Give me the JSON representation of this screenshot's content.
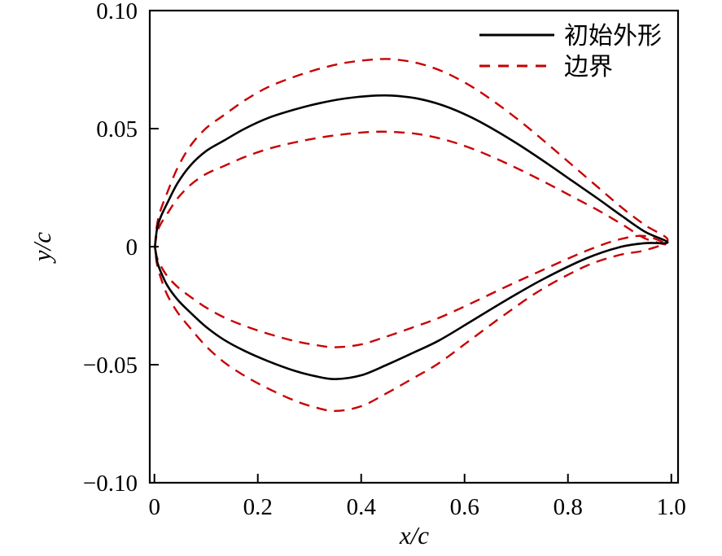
{
  "figure": {
    "background": "#ffffff",
    "axes": {
      "xlabel": "x/c",
      "ylabel": "y/c"
    },
    "legend": {
      "position": "upper right",
      "items": [
        {
          "label": "初始外形",
          "style": "solid",
          "color": "#000000"
        },
        {
          "label": "边界",
          "style": "dashed",
          "color": "#c80000"
        }
      ]
    }
  },
  "chart_data": {
    "type": "line",
    "title": "",
    "xlabel": "x/c",
    "ylabel": "y/c",
    "xlim": [
      -0.009,
      1.013
    ],
    "ylim": [
      -0.1,
      0.1
    ],
    "grid": false,
    "legend_position": "upper right",
    "x_ticks": [
      {
        "v": 0.0,
        "label": "0"
      },
      {
        "v": 0.2,
        "label": "0.2"
      },
      {
        "v": 0.4,
        "label": "0.4"
      },
      {
        "v": 0.6,
        "label": "0.6"
      },
      {
        "v": 0.8,
        "label": "0.8"
      },
      {
        "v": 1.0,
        "label": "1.0"
      }
    ],
    "y_ticks": [
      {
        "v": 0.1,
        "label": "0.10"
      },
      {
        "v": 0.05,
        "label": "0.05"
      },
      {
        "v": 0.0,
        "label": "0"
      },
      {
        "v": -0.05,
        "label": "−0.05"
      },
      {
        "v": -0.1,
        "label": "−0.10"
      }
    ],
    "series": [
      {
        "name": "初始外形",
        "line": "solid",
        "color": "#000000",
        "upper": [
          [
            0.001,
            0.0
          ],
          [
            0.005,
            0.0075
          ],
          [
            0.012,
            0.0125
          ],
          [
            0.025,
            0.0185
          ],
          [
            0.045,
            0.027
          ],
          [
            0.07,
            0.0345
          ],
          [
            0.1,
            0.0405
          ],
          [
            0.135,
            0.045
          ],
          [
            0.175,
            0.05
          ],
          [
            0.22,
            0.0545
          ],
          [
            0.27,
            0.058
          ],
          [
            0.32,
            0.0608
          ],
          [
            0.37,
            0.0628
          ],
          [
            0.42,
            0.0639
          ],
          [
            0.46,
            0.064
          ],
          [
            0.51,
            0.0627
          ],
          [
            0.56,
            0.0597
          ],
          [
            0.61,
            0.0551
          ],
          [
            0.66,
            0.0492
          ],
          [
            0.71,
            0.0425
          ],
          [
            0.76,
            0.0352
          ],
          [
            0.81,
            0.0276
          ],
          [
            0.86,
            0.02
          ],
          [
            0.905,
            0.0129
          ],
          [
            0.95,
            0.0062
          ],
          [
            0.993,
            0.0018
          ]
        ],
        "lower": [
          [
            0.001,
            0.0
          ],
          [
            0.005,
            -0.006
          ],
          [
            0.012,
            -0.0105
          ],
          [
            0.025,
            -0.0165
          ],
          [
            0.045,
            -0.0225
          ],
          [
            0.07,
            -0.028
          ],
          [
            0.1,
            -0.034
          ],
          [
            0.135,
            -0.0395
          ],
          [
            0.175,
            -0.0442
          ],
          [
            0.22,
            -0.0485
          ],
          [
            0.27,
            -0.0525
          ],
          [
            0.31,
            -0.0548
          ],
          [
            0.35,
            -0.0561
          ],
          [
            0.4,
            -0.0545
          ],
          [
            0.45,
            -0.05
          ],
          [
            0.5,
            -0.045
          ],
          [
            0.55,
            -0.0398
          ],
          [
            0.61,
            -0.032
          ],
          [
            0.677,
            -0.0231
          ],
          [
            0.75,
            -0.014
          ],
          [
            0.835,
            -0.005
          ],
          [
            0.9,
            -0.0002
          ],
          [
            0.95,
            0.0015
          ],
          [
            0.993,
            0.0018
          ]
        ]
      },
      {
        "name": "边界",
        "line": "dashed",
        "color": "#c80000",
        "outer_upper": [
          [
            0.001,
            0.0
          ],
          [
            0.005,
            0.0093
          ],
          [
            0.012,
            0.0155
          ],
          [
            0.025,
            0.023
          ],
          [
            0.045,
            0.0335
          ],
          [
            0.07,
            0.0428
          ],
          [
            0.1,
            0.0502
          ],
          [
            0.135,
            0.0558
          ],
          [
            0.175,
            0.062
          ],
          [
            0.22,
            0.0676
          ],
          [
            0.27,
            0.0719
          ],
          [
            0.32,
            0.0754
          ],
          [
            0.37,
            0.0779
          ],
          [
            0.42,
            0.0792
          ],
          [
            0.46,
            0.0794
          ],
          [
            0.51,
            0.0777
          ],
          [
            0.56,
            0.074
          ],
          [
            0.61,
            0.0683
          ],
          [
            0.66,
            0.061
          ],
          [
            0.71,
            0.0527
          ],
          [
            0.76,
            0.0436
          ],
          [
            0.81,
            0.0342
          ],
          [
            0.86,
            0.0248
          ],
          [
            0.905,
            0.0164
          ],
          [
            0.95,
            0.009
          ],
          [
            0.993,
            0.0028
          ]
        ],
        "outer_lower": [
          [
            0.001,
            0.0
          ],
          [
            0.005,
            -0.0074
          ],
          [
            0.012,
            -0.013
          ],
          [
            0.025,
            -0.0205
          ],
          [
            0.045,
            -0.0279
          ],
          [
            0.07,
            -0.0347
          ],
          [
            0.1,
            -0.0422
          ],
          [
            0.135,
            -0.049
          ],
          [
            0.175,
            -0.0548
          ],
          [
            0.22,
            -0.0601
          ],
          [
            0.27,
            -0.0651
          ],
          [
            0.31,
            -0.068
          ],
          [
            0.35,
            -0.0696
          ],
          [
            0.4,
            -0.0676
          ],
          [
            0.45,
            -0.062
          ],
          [
            0.5,
            -0.0558
          ],
          [
            0.55,
            -0.0494
          ],
          [
            0.61,
            -0.0397
          ],
          [
            0.677,
            -0.0289
          ],
          [
            0.75,
            -0.018
          ],
          [
            0.835,
            -0.0082
          ],
          [
            0.9,
            -0.0035
          ],
          [
            0.95,
            -0.0015
          ],
          [
            0.993,
            0.0008
          ]
        ],
        "inner_upper": [
          [
            0.001,
            0.0
          ],
          [
            0.005,
            0.0057
          ],
          [
            0.012,
            0.0095
          ],
          [
            0.025,
            0.014
          ],
          [
            0.045,
            0.0205
          ],
          [
            0.07,
            0.0262
          ],
          [
            0.1,
            0.0308
          ],
          [
            0.135,
            0.0342
          ],
          [
            0.175,
            0.038
          ],
          [
            0.22,
            0.0414
          ],
          [
            0.27,
            0.0441
          ],
          [
            0.32,
            0.0462
          ],
          [
            0.37,
            0.0477
          ],
          [
            0.42,
            0.0486
          ],
          [
            0.46,
            0.0486
          ],
          [
            0.51,
            0.0477
          ],
          [
            0.56,
            0.0454
          ],
          [
            0.61,
            0.0419
          ],
          [
            0.66,
            0.0374
          ],
          [
            0.71,
            0.0323
          ],
          [
            0.76,
            0.0268
          ],
          [
            0.81,
            0.021
          ],
          [
            0.86,
            0.0152
          ],
          [
            0.905,
            0.0094
          ],
          [
            0.95,
            0.0034
          ],
          [
            0.993,
            0.0008
          ]
        ],
        "inner_lower": [
          [
            0.001,
            0.0
          ],
          [
            0.005,
            -0.0046
          ],
          [
            0.012,
            -0.008
          ],
          [
            0.025,
            -0.0125
          ],
          [
            0.045,
            -0.0171
          ],
          [
            0.07,
            -0.0213
          ],
          [
            0.1,
            -0.0258
          ],
          [
            0.135,
            -0.03
          ],
          [
            0.175,
            -0.0336
          ],
          [
            0.22,
            -0.0369
          ],
          [
            0.27,
            -0.0399
          ],
          [
            0.31,
            -0.0416
          ],
          [
            0.35,
            -0.0426
          ],
          [
            0.4,
            -0.0414
          ],
          [
            0.45,
            -0.038
          ],
          [
            0.5,
            -0.0342
          ],
          [
            0.55,
            -0.0302
          ],
          [
            0.61,
            -0.0243
          ],
          [
            0.677,
            -0.0173
          ],
          [
            0.75,
            -0.01
          ],
          [
            0.835,
            -0.0018
          ],
          [
            0.9,
            0.0031
          ],
          [
            0.95,
            0.0045
          ],
          [
            0.993,
            0.0028
          ]
        ]
      }
    ]
  }
}
